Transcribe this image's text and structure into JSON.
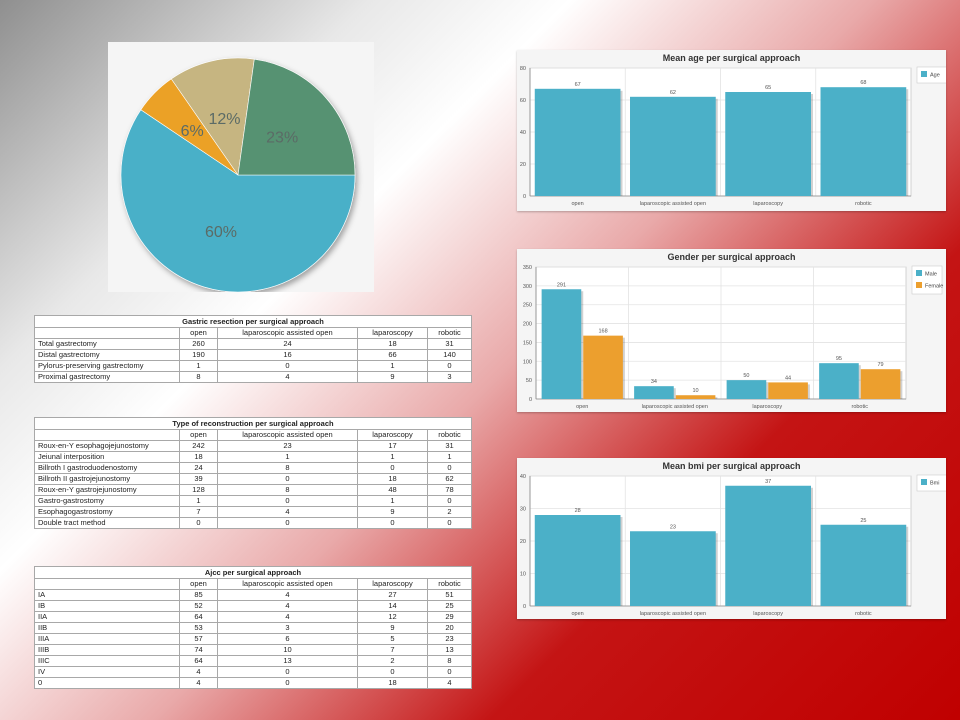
{
  "colors": {
    "teal": "#4bb0c8",
    "orange": "#ec9f2e",
    "green": "#4e8e6c",
    "khaki": "#c4b07e",
    "pie_teal": "#4ab0c8",
    "pie_orange": "#eba128",
    "pie_khaki": "#c6b581",
    "pie_green": "#579272"
  },
  "chart_data": [
    {
      "id": "pie",
      "type": "pie",
      "slices": [
        {
          "label": "60%",
          "value": 60,
          "color": "#4ab0c8"
        },
        {
          "label": "6%",
          "value": 6,
          "color": "#eba128"
        },
        {
          "label": "12%",
          "value": 12,
          "color": "#c6b581"
        },
        {
          "label": "23%",
          "value": 23,
          "color": "#579272"
        }
      ]
    },
    {
      "id": "age",
      "type": "bar",
      "title": "Mean age per surgical approach",
      "categories": [
        "open",
        "laparoscopic assisted open",
        "laparoscopy",
        "robotic"
      ],
      "series": [
        {
          "name": "Age",
          "values": [
            67,
            62,
            65,
            68
          ],
          "color": "#4bb0c8"
        }
      ],
      "ylim": [
        0,
        80
      ],
      "yticks": [
        0,
        20,
        40,
        60,
        80
      ],
      "grid": true,
      "legend": "top-right"
    },
    {
      "id": "gender",
      "type": "bar",
      "title": "Gender per surgical approach",
      "categories": [
        "open",
        "laparoscopic assisted open",
        "laparoscopy",
        "robotic"
      ],
      "series": [
        {
          "name": "Male",
          "values": [
            291,
            34,
            50,
            95
          ],
          "color": "#4bb0c8"
        },
        {
          "name": "Female",
          "values": [
            168,
            10,
            44,
            79
          ],
          "color": "#ec9f2e"
        }
      ],
      "ylim": [
        0,
        350
      ],
      "yticks": [
        0,
        50,
        100,
        150,
        200,
        250,
        300,
        350
      ],
      "grid": true,
      "legend": "top-right"
    },
    {
      "id": "bmi",
      "type": "bar",
      "title": "Mean bmi per surgical approach",
      "categories": [
        "open",
        "laparoscopic assisted open",
        "laparoscopy",
        "robotic"
      ],
      "series": [
        {
          "name": "Bmi",
          "values": [
            28,
            23,
            37,
            25
          ],
          "color": "#4bb0c8"
        }
      ],
      "ylim": [
        0,
        40
      ],
      "yticks": [
        0,
        10,
        20,
        30,
        40
      ],
      "grid": true,
      "legend": "top-right"
    }
  ],
  "tables": [
    {
      "id": "gastric",
      "title": "Gastric resection per surgical approach",
      "columns": [
        "",
        "open",
        "laparoscopic assisted open",
        "laparoscopy",
        "robotic"
      ],
      "rows": [
        [
          "Total gastrectomy",
          "260",
          "24",
          "18",
          "31"
        ],
        [
          "Distal gastrectomy",
          "190",
          "16",
          "66",
          "140"
        ],
        [
          "Pylorus-preserving gastrectomy",
          "1",
          "0",
          "1",
          "0"
        ],
        [
          "Proximal gastrectomy",
          "8",
          "4",
          "9",
          "3"
        ]
      ]
    },
    {
      "id": "reconstruction",
      "title": "Type of reconstruction per surgical approach",
      "columns": [
        "",
        "open",
        "laparoscopic assisted open",
        "laparoscopy",
        "robotic"
      ],
      "rows": [
        [
          "Roux-en-Y esophagojejunostomy",
          "242",
          "23",
          "17",
          "31"
        ],
        [
          "Jeiunal interposition",
          "18",
          "1",
          "1",
          "1"
        ],
        [
          "Billroth I gastroduodenostomy",
          "24",
          "8",
          "0",
          "0"
        ],
        [
          "Billroth II gastrojejunostomy",
          "39",
          "0",
          "18",
          "62"
        ],
        [
          "Roux-en-Y gastrojejunostomy",
          "128",
          "8",
          "48",
          "78"
        ],
        [
          "Gastro-gastrostomy",
          "1",
          "0",
          "1",
          "0"
        ],
        [
          "Esophagogastrostomy",
          "7",
          "4",
          "9",
          "2"
        ],
        [
          "Double tract method",
          "0",
          "0",
          "0",
          "0"
        ]
      ]
    },
    {
      "id": "ajcc",
      "title": "Ajcc per surgical approach",
      "columns": [
        "",
        "open",
        "laparoscopic assisted open",
        "laparoscopy",
        "robotic"
      ],
      "rows": [
        [
          "IA",
          "85",
          "4",
          "27",
          "51"
        ],
        [
          "IB",
          "52",
          "4",
          "14",
          "25"
        ],
        [
          "IIA",
          "64",
          "4",
          "12",
          "29"
        ],
        [
          "IIB",
          "53",
          "3",
          "9",
          "20"
        ],
        [
          "IIIA",
          "57",
          "6",
          "5",
          "23"
        ],
        [
          "IIIB",
          "74",
          "10",
          "7",
          "13"
        ],
        [
          "IIIC",
          "64",
          "13",
          "2",
          "8"
        ],
        [
          "IV",
          "4",
          "0",
          "0",
          "0"
        ],
        [
          "0",
          "4",
          "0",
          "18",
          "4"
        ]
      ]
    }
  ]
}
